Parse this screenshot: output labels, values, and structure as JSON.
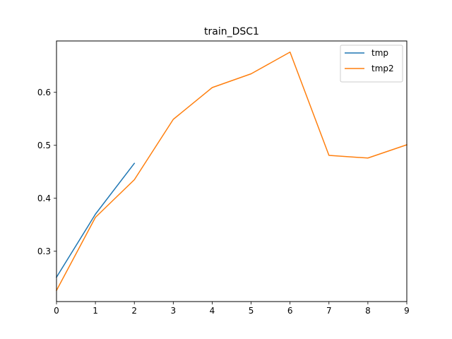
{
  "chart_data": {
    "type": "line",
    "title": "train_DSC1",
    "xlabel": "",
    "ylabel": "",
    "xlim": [
      0,
      9
    ],
    "ylim": [
      0.205,
      0.697
    ],
    "xticks": [
      0,
      1,
      2,
      3,
      4,
      5,
      6,
      7,
      8,
      9
    ],
    "yticks": [
      0.3,
      0.4,
      0.5,
      0.6
    ],
    "ytick_labels": [
      "0.3",
      "0.4",
      "0.5",
      "0.6"
    ],
    "grid": false,
    "legend_position": "top-right",
    "series": [
      {
        "name": "tmp",
        "color": "#1f77b4",
        "x": [
          0,
          1,
          2
        ],
        "y": [
          0.251,
          0.37,
          0.466
        ]
      },
      {
        "name": "tmp2",
        "color": "#ff7f0e",
        "x": [
          0,
          1,
          2,
          3,
          4,
          5,
          6,
          7,
          8,
          9
        ],
        "y": [
          0.226,
          0.364,
          0.435,
          0.549,
          0.609,
          0.635,
          0.676,
          0.481,
          0.476,
          0.501
        ]
      }
    ]
  }
}
